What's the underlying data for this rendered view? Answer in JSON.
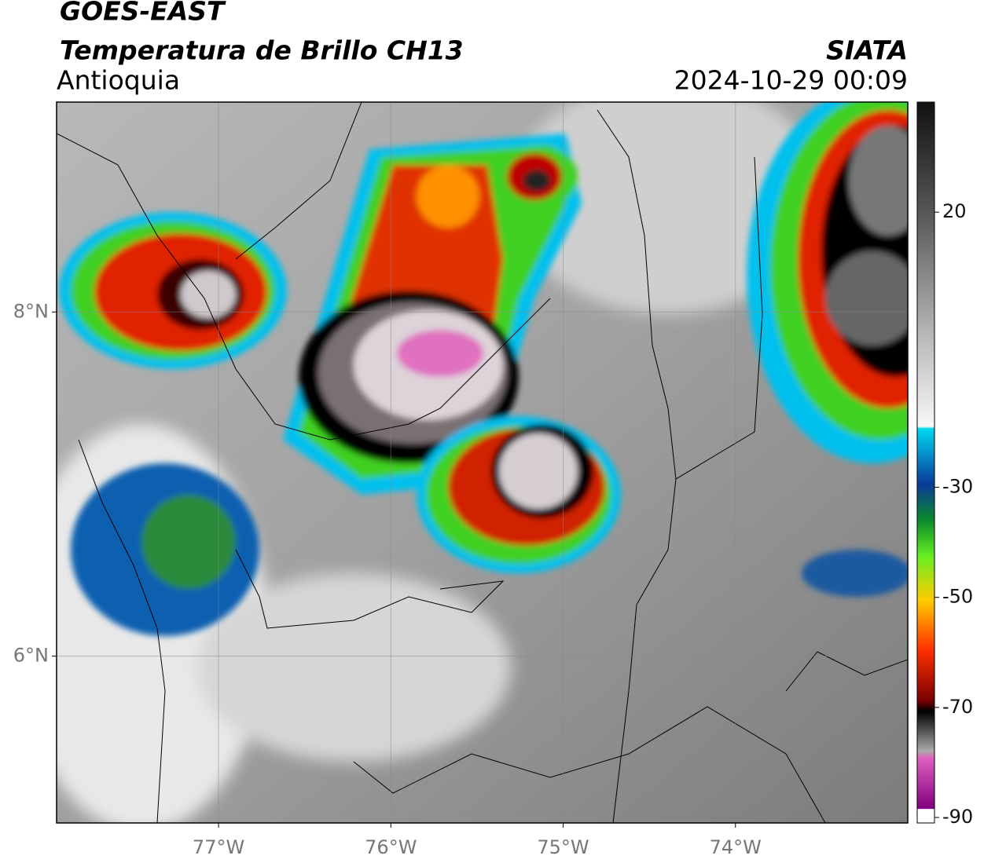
{
  "header": {
    "title": "GOES-EAST",
    "subtitle": "Temperatura de Brillo CH13",
    "region": "Antioquia",
    "source": "SIATA",
    "timestamp": "2024-10-29 00:09"
  },
  "map": {
    "xlim": [
      -77.94,
      -73.0
    ],
    "ylim": [
      5.03,
      9.22
    ],
    "xticks": [
      {
        "value": -77,
        "label": "77°W"
      },
      {
        "value": -76,
        "label": "76°W"
      },
      {
        "value": -75,
        "label": "75°W"
      },
      {
        "value": -74,
        "label": "74°W"
      }
    ],
    "yticks": [
      {
        "value": 8,
        "label": "8°N"
      },
      {
        "value": 6,
        "label": "6°N"
      }
    ],
    "grid": true
  },
  "colorbar": {
    "clim": [
      -91,
      40
    ],
    "ticks": [
      20,
      -30,
      -50,
      -70,
      -90
    ]
  }
}
